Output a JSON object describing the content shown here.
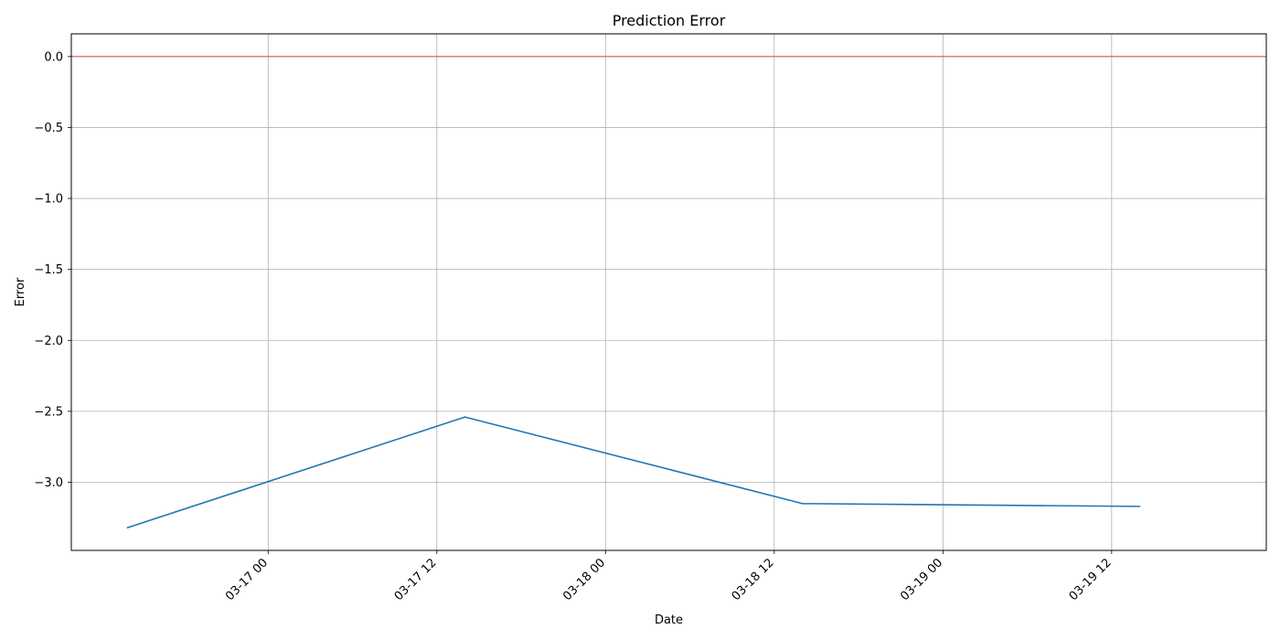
{
  "chart_data": {
    "type": "line",
    "title": "Prediction Error",
    "xlabel": "Date",
    "ylabel": "Error",
    "grid": true,
    "xlim": [
      "2026-03-16 10:00",
      "2026-03-19 23:00"
    ],
    "ylim": [
      -3.48,
      0.16
    ],
    "x_ticks": [
      {
        "value": "2026-03-17 00:00",
        "label": "03-17 00"
      },
      {
        "value": "2026-03-17 12:00",
        "label": "03-17 12"
      },
      {
        "value": "2026-03-18 00:00",
        "label": "03-18 00"
      },
      {
        "value": "2026-03-18 12:00",
        "label": "03-18 12"
      },
      {
        "value": "2026-03-19 00:00",
        "label": "03-19 00"
      },
      {
        "value": "2026-03-19 12:00",
        "label": "03-19 12"
      }
    ],
    "y_ticks": [
      {
        "value": 0.0,
        "label": "0.0"
      },
      {
        "value": -0.5,
        "label": "−0.5"
      },
      {
        "value": -1.0,
        "label": "−1.0"
      },
      {
        "value": -1.5,
        "label": "−1.5"
      },
      {
        "value": -2.0,
        "label": "−2.0"
      },
      {
        "value": -2.5,
        "label": "−2.5"
      },
      {
        "value": -3.0,
        "label": "−3.0"
      }
    ],
    "series": [
      {
        "color": "#1f77b4",
        "points": [
          {
            "x": "2026-03-16 14:00",
            "y": -3.32
          },
          {
            "x": "2026-03-17 14:00",
            "y": -2.54
          },
          {
            "x": "2026-03-18 14:00",
            "y": -3.15
          },
          {
            "x": "2026-03-19 14:00",
            "y": -3.17
          }
        ]
      }
    ],
    "reference_line": {
      "y": 0.0,
      "color": "#ff0000"
    }
  }
}
